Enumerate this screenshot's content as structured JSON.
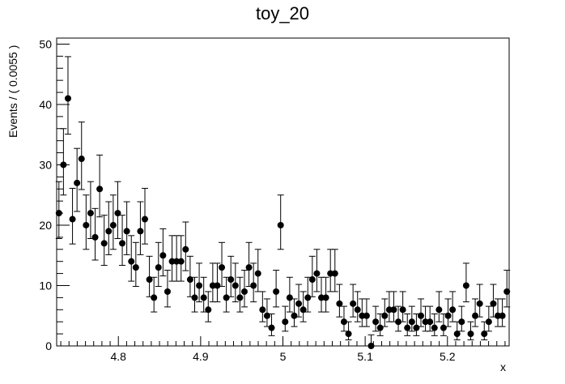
{
  "chart_data": {
    "type": "scatter",
    "title": "toy_20",
    "xlabel": "x",
    "ylabel": "Events / ( 0.0055 )",
    "xlim": [
      4.725,
      5.275
    ],
    "ylim": [
      0,
      51
    ],
    "x_ticks": [
      "4.8",
      "4.9",
      "5",
      "5.1",
      "5.2"
    ],
    "y_ticks": [
      "0",
      "10",
      "20",
      "30",
      "40",
      "50"
    ],
    "bin_width": 0.0055,
    "grid": false,
    "legend": "none",
    "error_bars": "poisson",
    "series": [
      {
        "x_start": 4.72775,
        "values": [
          22,
          30,
          41,
          21,
          27,
          31,
          20,
          22,
          18,
          26,
          17,
          19,
          20,
          22,
          17,
          19,
          14,
          13,
          19,
          21,
          11,
          8,
          13,
          15,
          9,
          14,
          14,
          14,
          16,
          11,
          8,
          10,
          8,
          6,
          10,
          10,
          13,
          8,
          11,
          10,
          8,
          9,
          13,
          10,
          12,
          6,
          5,
          3,
          9,
          20,
          4,
          8,
          5,
          7,
          6,
          8,
          11,
          12,
          8,
          8,
          12,
          12,
          7,
          4,
          2,
          7,
          6,
          5,
          5,
          0,
          4,
          3,
          5,
          6,
          6,
          4,
          6,
          3,
          4,
          3,
          5,
          4,
          4,
          3,
          6,
          3,
          5,
          6,
          2,
          4,
          10,
          2,
          5,
          7,
          2,
          4,
          7,
          5,
          5,
          9
        ]
      }
    ]
  }
}
